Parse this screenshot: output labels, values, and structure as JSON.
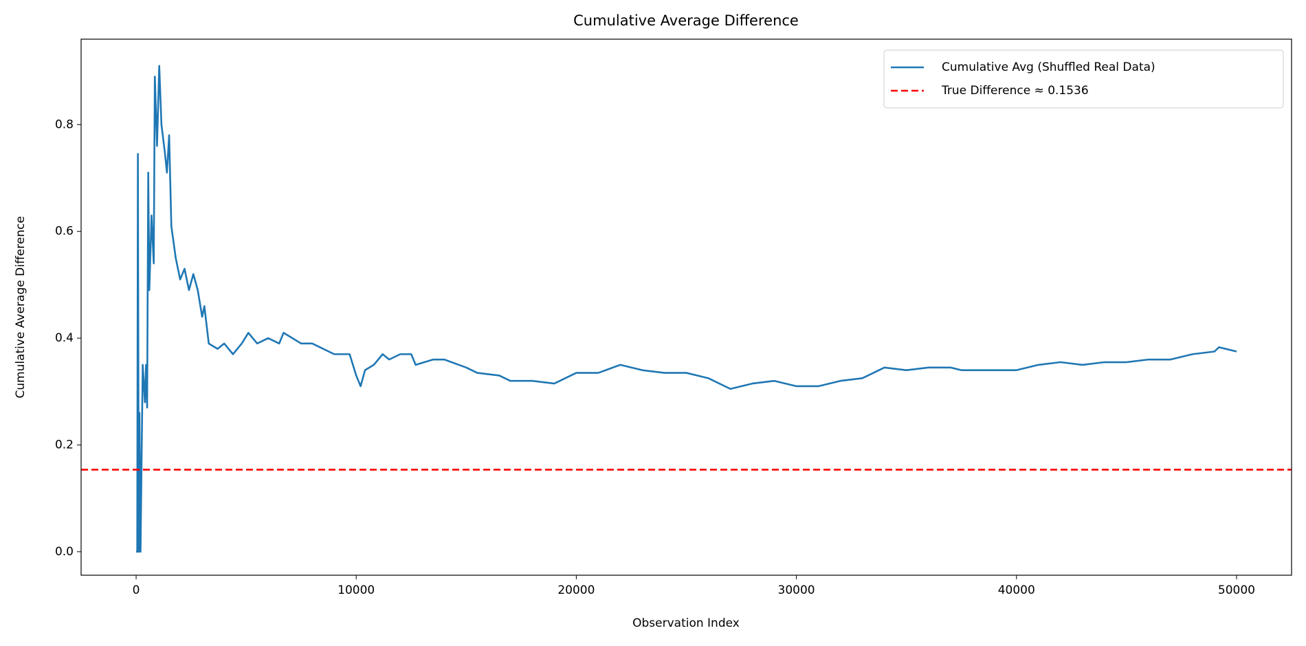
{
  "chart_data": {
    "type": "line",
    "title": "Cumulative Average Difference",
    "x_label": "Observation Index",
    "y_label": "Cumulative Average Difference",
    "x": [
      0,
      50,
      80,
      120,
      150,
      200,
      250,
      300,
      400,
      450,
      500,
      550,
      600,
      700,
      800,
      850,
      950,
      1050,
      1150,
      1300,
      1400,
      1500,
      1600,
      1800,
      2000,
      2200,
      2400,
      2600,
      2800,
      3000,
      3100,
      3300,
      3700,
      4000,
      4400,
      4800,
      5100,
      5500,
      6000,
      6500,
      6700,
      7500,
      8000,
      9000,
      9700,
      10000,
      10200,
      10400,
      10800,
      11200,
      11500,
      12000,
      12500,
      12700,
      13500,
      14000,
      15000,
      15500,
      16500,
      17000,
      18000,
      19000,
      20000,
      21000,
      22000,
      23000,
      24000,
      25000,
      26000,
      27000,
      28000,
      29000,
      30000,
      31000,
      32000,
      33000,
      34000,
      35000,
      36000,
      37000,
      37500,
      39000,
      40000,
      41000,
      42000,
      43000,
      44000,
      45000,
      46000,
      47000,
      48000,
      49000,
      49200,
      50000
    ],
    "series": [
      {
        "name": "Cumulative Avg (Shuffled Real Data)",
        "color": "#1f77b4",
        "values": [
          0,
          0.0,
          0.745,
          0.0,
          0.26,
          0.0,
          0.18,
          0.35,
          0.28,
          0.35,
          0.27,
          0.71,
          0.49,
          0.63,
          0.54,
          0.89,
          0.76,
          0.91,
          0.8,
          0.75,
          0.71,
          0.78,
          0.61,
          0.55,
          0.51,
          0.53,
          0.49,
          0.52,
          0.49,
          0.44,
          0.46,
          0.39,
          0.38,
          0.39,
          0.37,
          0.39,
          0.41,
          0.39,
          0.4,
          0.39,
          0.41,
          0.39,
          0.39,
          0.37,
          0.37,
          0.33,
          0.31,
          0.34,
          0.35,
          0.37,
          0.36,
          0.37,
          0.37,
          0.35,
          0.36,
          0.36,
          0.345,
          0.335,
          0.33,
          0.32,
          0.32,
          0.315,
          0.335,
          0.335,
          0.35,
          0.34,
          0.335,
          0.335,
          0.325,
          0.305,
          0.315,
          0.32,
          0.31,
          0.31,
          0.32,
          0.325,
          0.345,
          0.34,
          0.345,
          0.345,
          0.34,
          0.34,
          0.34,
          0.35,
          0.355,
          0.35,
          0.355,
          0.355,
          0.36,
          0.36,
          0.37,
          0.375,
          0.383,
          0.375
        ]
      }
    ],
    "reference_line": {
      "value": 0.1536,
      "label": "True Difference ≈ 0.1536",
      "color": "#ff0000",
      "style": "dashed"
    },
    "xlim": [
      -2500,
      52500
    ],
    "xticks": [
      0,
      10000,
      20000,
      30000,
      40000,
      50000
    ],
    "ylim": [
      -0.044,
      0.96
    ],
    "yticks": [
      {
        "value": 0,
        "label": "0.0"
      },
      0.2,
      0.4,
      0.6,
      0.8
    ],
    "legend": "upper right",
    "grid": false
  }
}
